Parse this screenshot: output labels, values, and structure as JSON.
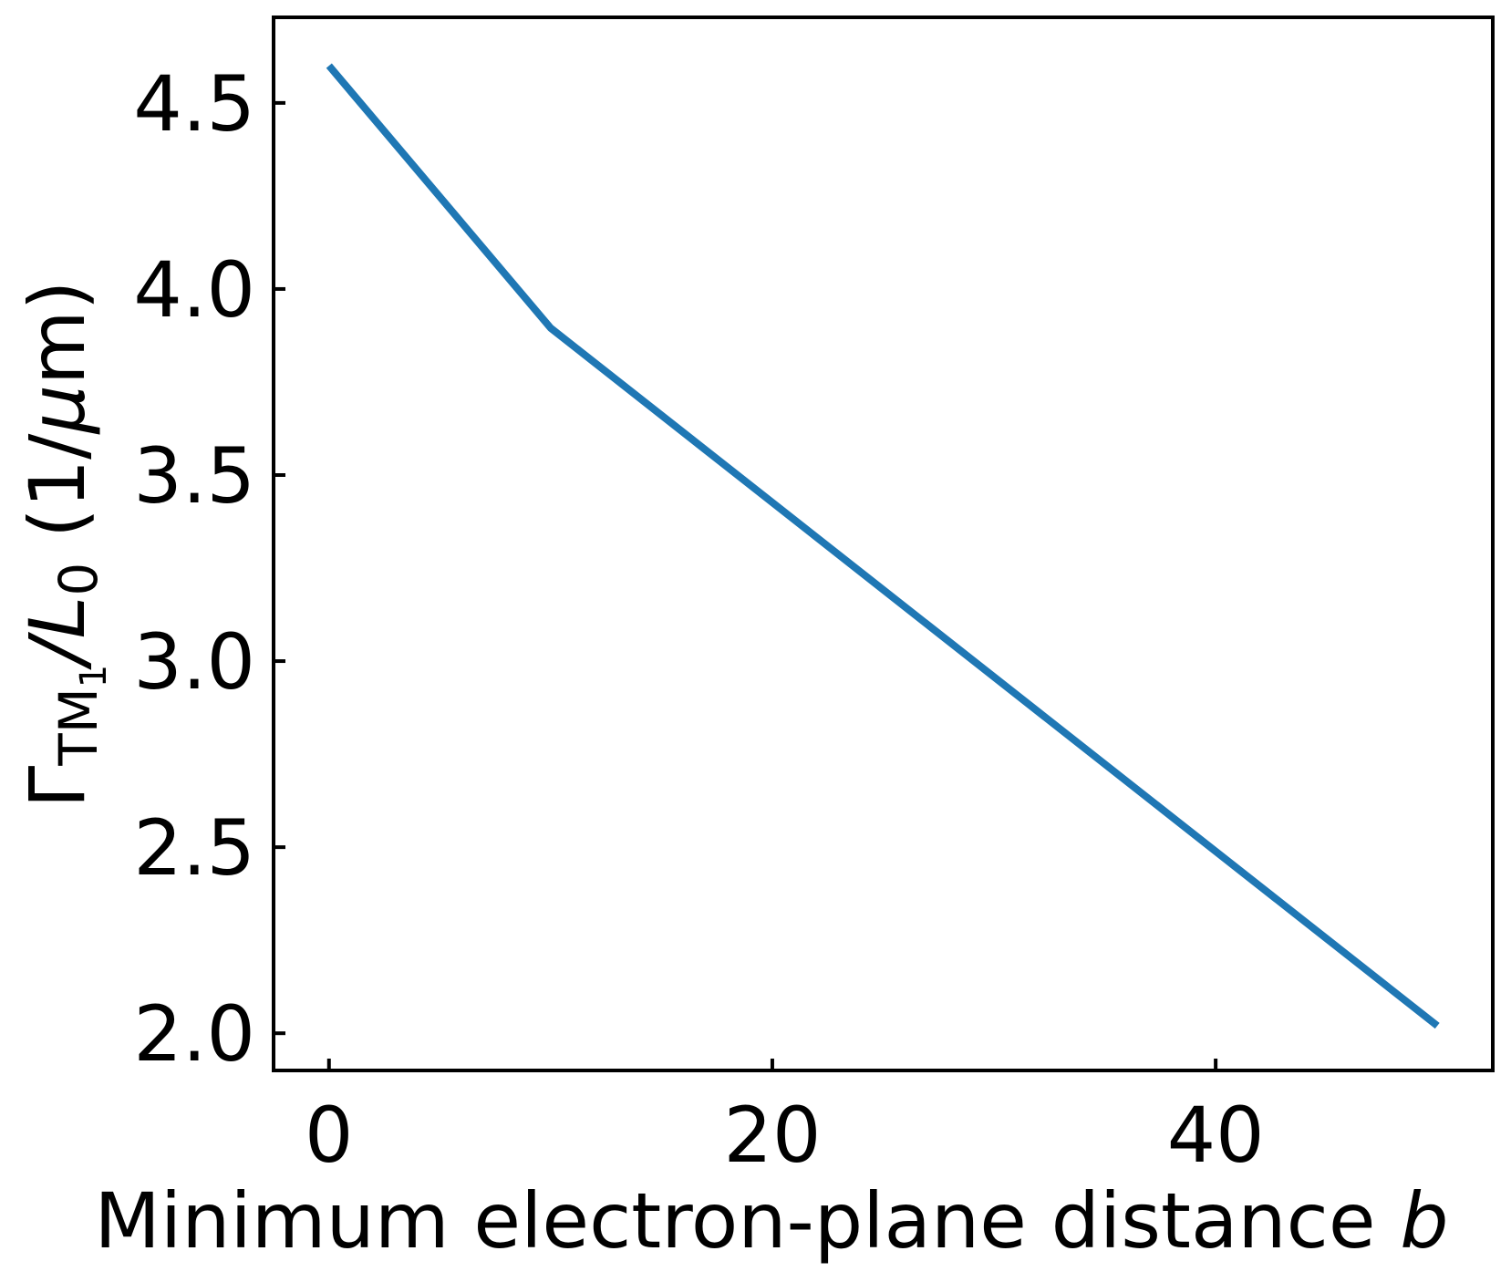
{
  "chart_data": {
    "type": "line",
    "xlabel": "Minimum electron-plane distance ",
    "xlabel_italic": "b",
    "ylabel_gamma": "Γ",
    "ylabel_subscript": "TM",
    "ylabel_subsub": "1",
    "ylabel_rest_slash": "/",
    "ylabel_L": "L",
    "ylabel_L_sub": "0",
    "ylabel_units": " (1/",
    "ylabel_mu": "μ",
    "ylabel_units_end": "m)",
    "xlim": [
      -2.5,
      52.5
    ],
    "ylim": [
      1.9,
      4.73
    ],
    "xticks": [
      0,
      20,
      40
    ],
    "xtick_labels": [
      "0",
      "20",
      "40"
    ],
    "yticks": [
      2.0,
      2.5,
      3.0,
      3.5,
      4.0,
      4.5
    ],
    "ytick_labels": [
      "2.0",
      "2.5",
      "3.0",
      "3.5",
      "4.0",
      "4.5"
    ],
    "tick_direction": "in",
    "grid": false,
    "series": [
      {
        "color": "#1f77b4",
        "x": [
          0,
          10,
          50
        ],
        "y": [
          4.6,
          3.895,
          2.02
        ]
      }
    ]
  }
}
